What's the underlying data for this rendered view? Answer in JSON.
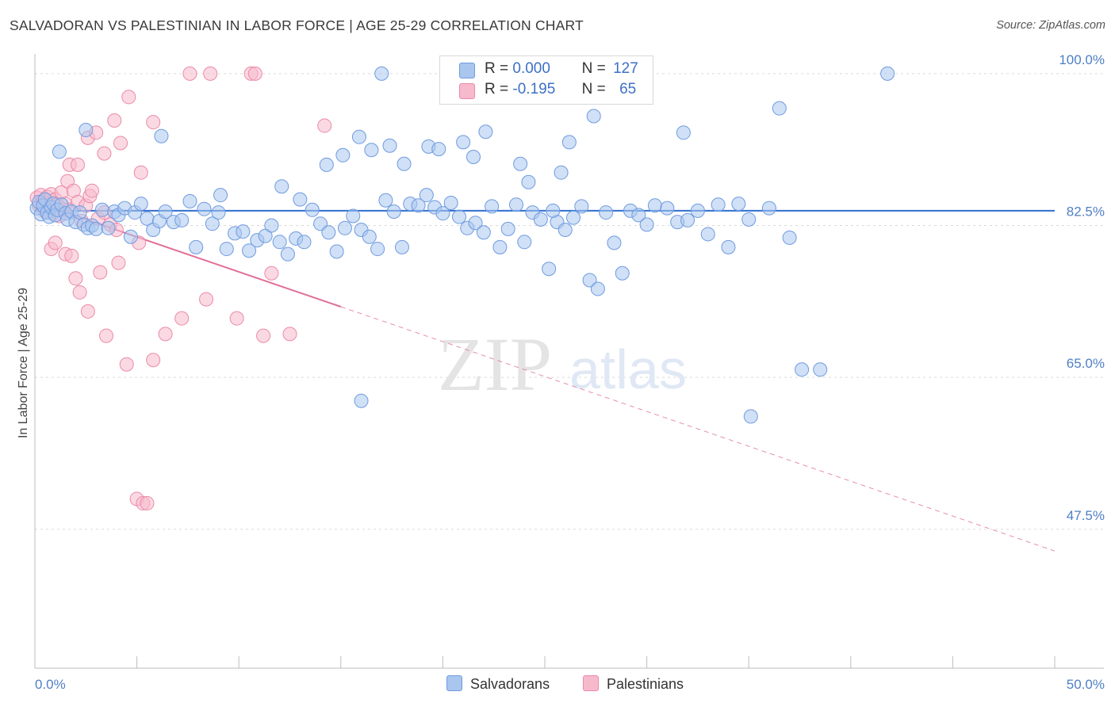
{
  "title": "SALVADORAN VS PALESTINIAN IN LABOR FORCE | AGE 25-29 CORRELATION CHART",
  "source": "Source: ZipAtlas.com",
  "watermark": {
    "zip": "ZIP",
    "atlas": "atlas"
  },
  "legend": {
    "r_label": "R =",
    "n_label": "N =",
    "rows": [
      {
        "r": "0.000",
        "n": "127",
        "color": "#a9c6ef",
        "border": "#6f9be0"
      },
      {
        "r": "-0.195",
        "n": "65",
        "color": "#f7b9cc",
        "border": "#eb8aa9"
      }
    ]
  },
  "bottom_legend": [
    "Salvadorans",
    "Palestinians"
  ],
  "colors": {
    "blue_line": "#2f6fd0",
    "pink_line": "#e0709a",
    "blue_point": "#a9c6ef",
    "pink_point": "#f7b9cc"
  },
  "chart_data": {
    "type": "scatter",
    "title": "SALVADORAN VS PALESTINIAN IN LABOR FORCE | AGE 25-29 CORRELATION CHART",
    "xlabel": "",
    "ylabel": "In Labor Force | Age 25-29",
    "xlim": [
      0,
      50
    ],
    "ylim": [
      31.5,
      103
    ],
    "x_tick_labels": [
      "0.0%",
      "50.0%"
    ],
    "y_ticks": [
      47.5,
      65.0,
      82.5,
      100.0
    ],
    "y_tick_labels": [
      "47.5%",
      "65.0%",
      "82.5%",
      "100.0%"
    ],
    "grid": true,
    "legend_position": "top-center",
    "series": [
      {
        "name": "Salvadorans",
        "r": 0.0,
        "n": 127,
        "trend": {
          "x0": 0,
          "y0": 84.2,
          "x1": 50,
          "y1": 84.2,
          "solid_to": 50
        },
        "points": [
          [
            0.1,
            84.5
          ],
          [
            0.2,
            85.2
          ],
          [
            0.3,
            83.8
          ],
          [
            0.4,
            84.8
          ],
          [
            0.5,
            85.5
          ],
          [
            0.6,
            84.0
          ],
          [
            0.7,
            83.5
          ],
          [
            0.8,
            84.6
          ],
          [
            0.9,
            85.0
          ],
          [
            1.0,
            83.7
          ],
          [
            1.1,
            84.3
          ],
          [
            1.3,
            84.9
          ],
          [
            1.5,
            83.9
          ],
          [
            1.6,
            83.2
          ],
          [
            1.8,
            84.1
          ],
          [
            2.0,
            82.9
          ],
          [
            2.2,
            84.0
          ],
          [
            2.4,
            82.6
          ],
          [
            2.6,
            82.2
          ],
          [
            2.8,
            82.5
          ],
          [
            3.0,
            82.1
          ],
          [
            3.3,
            84.3
          ],
          [
            3.6,
            82.2
          ],
          [
            3.9,
            84.1
          ],
          [
            4.1,
            83.7
          ],
          [
            4.4,
            84.5
          ],
          [
            4.7,
            81.2
          ],
          [
            4.9,
            84.0
          ],
          [
            5.2,
            85.0
          ],
          [
            5.5,
            83.3
          ],
          [
            5.8,
            82.0
          ],
          [
            6.1,
            83.0
          ],
          [
            6.4,
            84.1
          ],
          [
            6.8,
            82.9
          ],
          [
            7.2,
            83.1
          ],
          [
            7.6,
            85.3
          ],
          [
            7.9,
            80.0
          ],
          [
            8.3,
            84.4
          ],
          [
            8.7,
            82.7
          ],
          [
            9.0,
            84.0
          ],
          [
            9.4,
            79.8
          ],
          [
            9.8,
            81.6
          ],
          [
            10.2,
            81.8
          ],
          [
            10.5,
            79.6
          ],
          [
            10.9,
            80.8
          ],
          [
            11.3,
            81.3
          ],
          [
            11.6,
            82.5
          ],
          [
            12.0,
            80.6
          ],
          [
            12.4,
            79.2
          ],
          [
            12.8,
            81.0
          ],
          [
            13.2,
            80.6
          ],
          [
            13.6,
            84.3
          ],
          [
            14.0,
            82.7
          ],
          [
            14.4,
            81.7
          ],
          [
            14.8,
            79.5
          ],
          [
            15.2,
            82.2
          ],
          [
            15.6,
            83.6
          ],
          [
            16.0,
            82.0
          ],
          [
            16.4,
            81.2
          ],
          [
            16.8,
            79.8
          ],
          [
            17.2,
            85.4
          ],
          [
            17.6,
            84.1
          ],
          [
            18.0,
            80.0
          ],
          [
            18.4,
            85.0
          ],
          [
            18.8,
            84.8
          ],
          [
            19.2,
            86.0
          ],
          [
            19.6,
            84.6
          ],
          [
            20.0,
            83.9
          ],
          [
            20.4,
            85.1
          ],
          [
            20.8,
            83.5
          ],
          [
            21.2,
            82.2
          ],
          [
            21.6,
            82.8
          ],
          [
            22.0,
            81.7
          ],
          [
            22.4,
            84.7
          ],
          [
            22.8,
            80.0
          ],
          [
            23.2,
            82.1
          ],
          [
            23.6,
            84.9
          ],
          [
            24.0,
            80.6
          ],
          [
            24.4,
            84.0
          ],
          [
            24.8,
            83.2
          ],
          [
            25.2,
            77.5
          ],
          [
            25.6,
            82.9
          ],
          [
            26.0,
            82.0
          ],
          [
            26.4,
            83.4
          ],
          [
            26.8,
            84.7
          ],
          [
            27.2,
            76.2
          ],
          [
            27.6,
            75.2
          ],
          [
            28.0,
            84.0
          ],
          [
            28.4,
            80.5
          ],
          [
            28.8,
            77.0
          ],
          [
            29.2,
            84.2
          ],
          [
            29.6,
            83.7
          ],
          [
            30.0,
            82.6
          ],
          [
            30.4,
            84.8
          ],
          [
            31.0,
            84.5
          ],
          [
            31.5,
            82.9
          ],
          [
            32.0,
            83.1
          ],
          [
            32.5,
            84.2
          ],
          [
            33.0,
            81.5
          ],
          [
            33.5,
            84.9
          ],
          [
            34.0,
            80.0
          ],
          [
            34.5,
            85.0
          ],
          [
            35.0,
            83.2
          ],
          [
            36.0,
            84.5
          ],
          [
            1.2,
            91.0
          ],
          [
            2.5,
            93.5
          ],
          [
            6.2,
            92.8
          ],
          [
            9.1,
            86.0
          ],
          [
            12.1,
            87.0
          ],
          [
            13.0,
            85.5
          ],
          [
            14.3,
            89.5
          ],
          [
            15.1,
            90.6
          ],
          [
            15.9,
            92.7
          ],
          [
            16.5,
            91.2
          ],
          [
            17.0,
            100.0
          ],
          [
            17.4,
            91.7
          ],
          [
            18.1,
            89.6
          ],
          [
            19.3,
            91.6
          ],
          [
            19.8,
            91.3
          ],
          [
            21.0,
            92.1
          ],
          [
            21.5,
            90.4
          ],
          [
            22.1,
            93.3
          ],
          [
            23.8,
            89.6
          ],
          [
            24.2,
            87.5
          ],
          [
            25.8,
            88.6
          ],
          [
            26.2,
            92.1
          ],
          [
            27.4,
            95.1
          ],
          [
            31.8,
            93.2
          ],
          [
            36.5,
            96.0
          ],
          [
            37.6,
            65.9
          ],
          [
            41.8,
            100.0
          ],
          [
            25.4,
            84.2
          ],
          [
            21.9,
            100.0
          ],
          [
            16.0,
            62.3
          ],
          [
            35.1,
            60.5
          ],
          [
            38.5,
            65.9
          ],
          [
            37.0,
            81.1
          ]
        ]
      },
      {
        "name": "Palestinians",
        "r": -0.195,
        "n": 65,
        "trend": {
          "x0": 0,
          "y0": 85.2,
          "x1": 50,
          "y1": 45.0,
          "solid_to": 15
        },
        "points": [
          [
            0.1,
            85.7
          ],
          [
            0.2,
            84.8
          ],
          [
            0.3,
            86.0
          ],
          [
            0.4,
            85.3
          ],
          [
            0.5,
            84.1
          ],
          [
            0.6,
            85.8
          ],
          [
            0.7,
            84.6
          ],
          [
            0.8,
            86.1
          ],
          [
            0.9,
            83.9
          ],
          [
            1.0,
            85.5
          ],
          [
            1.1,
            84.9
          ],
          [
            1.2,
            83.6
          ],
          [
            1.3,
            86.3
          ],
          [
            1.4,
            84.4
          ],
          [
            1.5,
            85.0
          ],
          [
            1.6,
            87.6
          ],
          [
            1.7,
            84.3
          ],
          [
            1.9,
            86.5
          ],
          [
            2.1,
            85.2
          ],
          [
            2.3,
            83.0
          ],
          [
            2.5,
            84.8
          ],
          [
            2.7,
            85.9
          ],
          [
            3.1,
            83.3
          ],
          [
            3.4,
            84.0
          ],
          [
            3.7,
            82.6
          ],
          [
            4.0,
            82.0
          ],
          [
            0.8,
            79.8
          ],
          [
            1.0,
            80.5
          ],
          [
            1.5,
            79.2
          ],
          [
            1.8,
            79.0
          ],
          [
            2.0,
            76.4
          ],
          [
            2.2,
            74.8
          ],
          [
            2.6,
            72.6
          ],
          [
            3.2,
            77.1
          ],
          [
            3.5,
            69.8
          ],
          [
            4.1,
            78.2
          ],
          [
            4.5,
            66.5
          ],
          [
            5.1,
            80.5
          ],
          [
            5.8,
            67.0
          ],
          [
            6.4,
            70.0
          ],
          [
            7.2,
            71.8
          ],
          [
            8.4,
            74.0
          ],
          [
            9.9,
            71.8
          ],
          [
            11.2,
            69.8
          ],
          [
            11.6,
            77.0
          ],
          [
            12.5,
            70.0
          ],
          [
            14.2,
            94.0
          ],
          [
            4.6,
            97.3
          ],
          [
            5.2,
            88.6
          ],
          [
            5.8,
            94.4
          ],
          [
            3.4,
            90.8
          ],
          [
            3.9,
            94.6
          ],
          [
            4.2,
            92.0
          ],
          [
            2.6,
            92.6
          ],
          [
            3.0,
            93.2
          ],
          [
            2.8,
            86.5
          ],
          [
            1.7,
            89.5
          ],
          [
            2.1,
            89.5
          ],
          [
            7.6,
            100.0
          ],
          [
            8.6,
            100.0
          ],
          [
            10.6,
            100.0
          ],
          [
            10.8,
            100.0
          ],
          [
            5.0,
            51.0
          ],
          [
            5.3,
            50.5
          ],
          [
            5.5,
            50.5
          ]
        ]
      }
    ]
  }
}
